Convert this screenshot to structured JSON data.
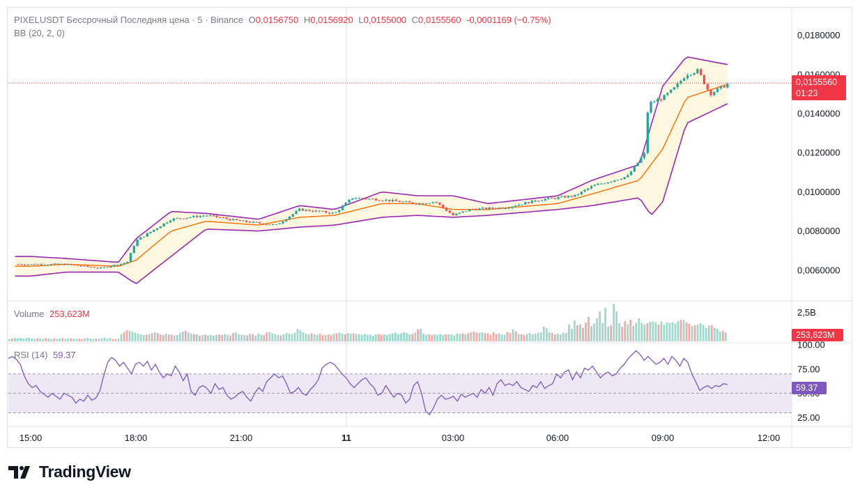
{
  "header": {
    "symbol": "PIXELUSDT Бессрочный Последняя цена · 5 · Binance",
    "o_label": "O",
    "o_value": "0,0156750",
    "h_label": "H",
    "h_value": "0,0156920",
    "l_label": "L",
    "l_value": "0,0155000",
    "c_label": "C",
    "c_value": "0,0155560",
    "change": "-0,0001169 (−0.75%)",
    "indicator": "BB (20, 2, 0)"
  },
  "volume_pane": {
    "label": "Volume",
    "value": "253,623M",
    "axis_label": "2,5B",
    "tag": "253,623M"
  },
  "rsi_pane": {
    "label": "RSI (14)",
    "value": "59.37",
    "tag": "59.37"
  },
  "price_tag": {
    "value": "0,0155560",
    "countdown": "01:23"
  },
  "brand": {
    "name": "TradingView"
  },
  "colors": {
    "up": "#26a69a",
    "down": "#ef5350",
    "basis": "#ff6d00",
    "band": "#9c27b0",
    "band_fill": "#fff8e1",
    "rsi_line": "#7e57c2",
    "rsi_fill": "#ede7f6",
    "tag_red": "#f23645",
    "tag_purple": "#7e57c2"
  },
  "chart_data": [
    {
      "type": "candlestick",
      "title": "PIXELUSDT Бессрочный Последняя цена · 5 · Binance",
      "x_ticks": [
        "15:00",
        "18:00",
        "21:00",
        "11",
        "03:00",
        "06:00",
        "09:00",
        "12:00"
      ],
      "y_ticks": [
        "0,0060000",
        "0,0080000",
        "0,0100000",
        "0,0120000",
        "0,0140000",
        "0,0160000",
        "0,0180000"
      ],
      "ylim": [
        0.0045,
        0.0193
      ],
      "last_price": 0.015556,
      "close_path": [
        [
          "15:00",
          0.0063
        ],
        [
          "16:00",
          0.0063
        ],
        [
          "17:00",
          0.0061
        ],
        [
          "17:45",
          0.0064
        ],
        [
          "18:00",
          0.0075
        ],
        [
          "19:00",
          0.0086
        ],
        [
          "20:00",
          0.0088
        ],
        [
          "21:00",
          0.0085
        ],
        [
          "22:00",
          0.0083
        ],
        [
          "22:40",
          0.0091
        ],
        [
          "23:40",
          0.0089
        ],
        [
          "00:10",
          0.0097
        ],
        [
          "01:00",
          0.0096
        ],
        [
          "02:00",
          0.0094
        ],
        [
          "02:30",
          0.0095
        ],
        [
          "03:00",
          0.0088
        ],
        [
          "03:30",
          0.0091
        ],
        [
          "04:30",
          0.0092
        ],
        [
          "05:30",
          0.0096
        ],
        [
          "06:30",
          0.0098
        ],
        [
          "07:00",
          0.0103
        ],
        [
          "08:00",
          0.0108
        ],
        [
          "08:30",
          0.012
        ],
        [
          "08:35",
          0.0145
        ],
        [
          "09:00",
          0.0148
        ],
        [
          "09:20",
          0.0153
        ],
        [
          "09:40",
          0.016
        ],
        [
          "10:00",
          0.0162
        ],
        [
          "10:20",
          0.015
        ],
        [
          "10:50",
          0.0155
        ]
      ],
      "indicator": "BB (20, 2, 0)",
      "upper_band": [
        [
          "15:00",
          0.0067
        ],
        [
          "16:00",
          0.0066
        ],
        [
          "17:30",
          0.0064
        ],
        [
          "18:00",
          0.0076
        ],
        [
          "19:00",
          0.009
        ],
        [
          "20:00",
          0.0089
        ],
        [
          "21:30",
          0.0086
        ],
        [
          "22:40",
          0.0093
        ],
        [
          "23:40",
          0.0091
        ],
        [
          "01:00",
          0.01
        ],
        [
          "02:00",
          0.0098
        ],
        [
          "03:00",
          0.0098
        ],
        [
          "04:00",
          0.0094
        ],
        [
          "06:00",
          0.0098
        ],
        [
          "07:00",
          0.0106
        ],
        [
          "08:20",
          0.0114
        ],
        [
          "09:00",
          0.0154
        ],
        [
          "09:40",
          0.0169
        ],
        [
          "10:50",
          0.0165
        ]
      ],
      "lower_band": [
        [
          "15:00",
          0.0057
        ],
        [
          "16:00",
          0.0059
        ],
        [
          "17:30",
          0.0059
        ],
        [
          "18:00",
          0.0053
        ],
        [
          "19:00",
          0.0067
        ],
        [
          "20:00",
          0.0081
        ],
        [
          "21:30",
          0.008
        ],
        [
          "22:40",
          0.0082
        ],
        [
          "23:40",
          0.0083
        ],
        [
          "01:00",
          0.0087
        ],
        [
          "02:00",
          0.0088
        ],
        [
          "03:00",
          0.0087
        ],
        [
          "04:00",
          0.0088
        ],
        [
          "06:00",
          0.0091
        ],
        [
          "07:00",
          0.0093
        ],
        [
          "08:20",
          0.0097
        ],
        [
          "08:40",
          0.0088
        ],
        [
          "09:00",
          0.0095
        ],
        [
          "09:40",
          0.0135
        ],
        [
          "10:50",
          0.0145
        ]
      ],
      "basis": [
        [
          "15:00",
          0.0062
        ],
        [
          "16:00",
          0.0063
        ],
        [
          "17:30",
          0.0062
        ],
        [
          "18:00",
          0.0065
        ],
        [
          "19:00",
          0.008
        ],
        [
          "20:00",
          0.0085
        ],
        [
          "21:30",
          0.0083
        ],
        [
          "22:40",
          0.0087
        ],
        [
          "23:40",
          0.0088
        ],
        [
          "01:00",
          0.0094
        ],
        [
          "02:00",
          0.0094
        ],
        [
          "03:00",
          0.0091
        ],
        [
          "04:00",
          0.0091
        ],
        [
          "06:00",
          0.0094
        ],
        [
          "07:00",
          0.0099
        ],
        [
          "08:20",
          0.0106
        ],
        [
          "09:00",
          0.0122
        ],
        [
          "09:40",
          0.0148
        ],
        [
          "10:50",
          0.0155
        ]
      ]
    },
    {
      "type": "bar",
      "title": "Volume",
      "axis_ticks": [
        "2,5B"
      ],
      "last_value": "253,623M",
      "series": [
        {
          "values": [
            0.7,
            0.8,
            1.0,
            0.9,
            1.0,
            0.8,
            0.9,
            1.1,
            0.8,
            0.7,
            0.9,
            0.8,
            0.7,
            0.9,
            0.8,
            0.6,
            0.8,
            0.7,
            0.8,
            0.9,
            0.7,
            0.8,
            0.9,
            0.8,
            0.7,
            0.8,
            0.6,
            0.9,
            1.0,
            0.8,
            0.7,
            0.8,
            0.7,
            0.9,
            1.1,
            0.8,
            0.9,
            0.7,
            0.6,
            0.8,
            2.1,
            2.6,
            3.2,
            3.0,
            2.8,
            2.5,
            2.2,
            2.0,
            1.8,
            1.9,
            2.1,
            2.3,
            2.6,
            2.4,
            2.0,
            1.8,
            2.2,
            2.0,
            1.9,
            1.7,
            1.8,
            2.4,
            2.8,
            3.0,
            2.6,
            2.2,
            2.1,
            2.0,
            1.6,
            1.8,
            1.9,
            1.7,
            1.8,
            1.6,
            1.9,
            2.0,
            1.8,
            2.1,
            1.9,
            1.7,
            2.4,
            2.6,
            2.0,
            1.9,
            1.8,
            1.7,
            2.2,
            2.1,
            1.6,
            2.2,
            1.9,
            1.8,
            2.6,
            2.7,
            2.3,
            2.1,
            1.8,
            1.7,
            2.0,
            2.4,
            2.2,
            2.1,
            2.5,
            3.6,
            3.2,
            2.6,
            2.2,
            2.0,
            2.3,
            2.1,
            1.9,
            2.2,
            1.7,
            1.8,
            2.0,
            1.8,
            2.2,
            2.3,
            2.5,
            2.2,
            2.0,
            2.4,
            2.2,
            2.3,
            2.0,
            2.1,
            1.9,
            2.1,
            1.8,
            1.9,
            1.6,
            2.0,
            2.1,
            1.9,
            2.0,
            1.8,
            2.1,
            2.3,
            2.5,
            2.1,
            2.3,
            2.6,
            2.4,
            2.0,
            2.1,
            2.5,
            3.4,
            3.6,
            2.2,
            1.9,
            2.0,
            1.8,
            2.0,
            1.9,
            2.1,
            1.8,
            2.0,
            2.1,
            2.0,
            1.7,
            2.2,
            2.1,
            2.3,
            2.0,
            2.4,
            2.6,
            2.8,
            2.5,
            2.4,
            2.6,
            2.4,
            2.3,
            1.9,
            2.6,
            2.1,
            2.3,
            2.0,
            1.9,
            2.7,
            2.4,
            3.5,
            2.9,
            2.1,
            2.0,
            1.8,
            2.1,
            2.4,
            2.0,
            2.2,
            2.5,
            2.6,
            4.2,
            3.8,
            2.6,
            2.4,
            2.0,
            2.2,
            1.9,
            2.5,
            2.4,
            4.8,
            3.6,
            6.0,
            4.6,
            4.9,
            3.9,
            5.4,
            7.0,
            4.4,
            5.1,
            6.6,
            8.6,
            5.3,
            9.6,
            4.2,
            4.6,
            10.8,
            8.6,
            5.2,
            4.2,
            5.8,
            4.9,
            6.2,
            4.4,
            5.3,
            6.6,
            5.3,
            4.8,
            5.2,
            5.6,
            5.7,
            5.5,
            4.8,
            5.7,
            4.8,
            5.4,
            5.3,
            5.5,
            5.1,
            5.8,
            6.2,
            6.1,
            5.4,
            5.0,
            4.4,
            4.6,
            4.8,
            5.2,
            4.7,
            3.8,
            4.5,
            4.6,
            3.9,
            3.6,
            2.8,
            3.0,
            2.5
          ]
        }
      ]
    },
    {
      "type": "line",
      "title": "RSI (14)",
      "y_ticks": [
        "100.00",
        "75.00",
        "50.00",
        "25.00"
      ],
      "ylim": [
        16,
        100
      ],
      "levels": [
        70,
        50,
        30
      ],
      "series": [
        {
          "values": [
            86,
            88,
            85,
            80,
            68,
            60,
            56,
            58,
            52,
            49,
            46,
            50,
            47,
            44,
            50,
            48,
            46,
            40,
            44,
            42,
            48,
            43,
            45,
            52,
            68,
            82,
            87,
            84,
            78,
            82,
            76,
            70,
            80,
            82,
            78,
            83,
            74,
            80,
            72,
            66,
            70,
            68,
            78,
            72,
            63,
            70,
            52,
            48,
            56,
            58,
            55,
            50,
            60,
            54,
            56,
            48,
            44,
            46,
            50,
            52,
            46,
            42,
            50,
            56,
            52,
            62,
            66,
            70,
            66,
            68,
            60,
            50,
            52,
            56,
            50,
            48,
            54,
            58,
            64,
            76,
            80,
            82,
            80,
            75,
            70,
            66,
            60,
            56,
            60,
            64,
            66,
            60,
            56,
            48,
            50,
            58,
            52,
            46,
            50,
            48,
            40,
            44,
            58,
            62,
            50,
            32,
            28,
            35,
            44,
            48,
            44,
            45,
            47,
            42,
            49,
            46,
            48,
            50,
            46,
            54,
            50,
            56,
            48,
            60,
            64,
            58,
            60,
            58,
            62,
            56,
            54,
            52,
            58,
            56,
            62,
            55,
            58,
            60,
            70,
            66,
            72,
            74,
            64,
            72,
            66,
            76,
            74,
            78,
            72,
            66,
            70,
            72,
            68,
            70,
            76,
            80,
            86,
            90,
            94,
            90,
            84,
            88,
            84,
            80,
            82,
            86,
            80,
            88,
            84,
            78,
            86,
            82,
            70,
            62,
            53,
            56,
            58,
            55,
            58,
            57,
            60,
            59
          ]
        }
      ]
    }
  ]
}
